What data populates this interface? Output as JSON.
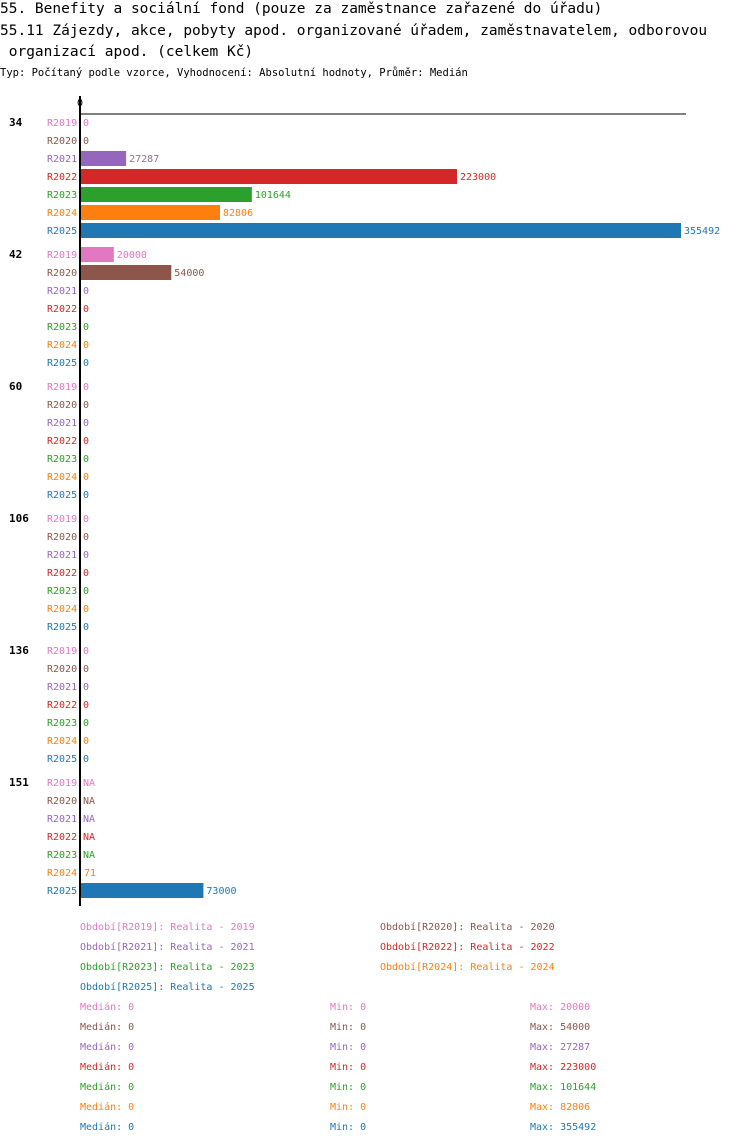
{
  "header": {
    "title_line1": "55. Benefity a sociální fond (pouze za zaměstnance zařazené do úřadu)",
    "title_line2": "55.11 Zájezdy, akce, pobyty apod. organizované úřadem, zaměstnavatelem, odborovou",
    "title_line3": " organizací apod. (celkem Kč)",
    "subtitle": "Typ: Počítaný podle vzorce, Vyhodnocení: Absolutní hodnoty, Průměr: Medián"
  },
  "chart_data": {
    "type": "bar",
    "orientation": "horizontal",
    "xmin": 0,
    "xmax": 355492,
    "axis_label_zero": "0",
    "groups": [
      "34",
      "42",
      "60",
      "106",
      "136",
      "151"
    ],
    "periods": [
      "R2019",
      "R2020",
      "R2021",
      "R2022",
      "R2023",
      "R2024",
      "R2025"
    ],
    "colors": {
      "R2019": "#e377c2",
      "R2020": "#8c564b",
      "R2021": "#9467bd",
      "R2022": "#d62728",
      "R2023": "#2ca02c",
      "R2024": "#ff7f0e",
      "R2025": "#1f77b4"
    },
    "values": [
      [
        0,
        0,
        27287,
        223000,
        101644,
        82806,
        355492
      ],
      [
        20000,
        54000,
        0,
        0,
        0,
        0,
        0
      ],
      [
        0,
        0,
        0,
        0,
        0,
        0,
        0
      ],
      [
        0,
        0,
        0,
        0,
        0,
        0,
        0
      ],
      [
        0,
        0,
        0,
        0,
        0,
        0,
        0
      ],
      [
        null,
        null,
        null,
        null,
        null,
        71,
        73000
      ]
    ],
    "labels": [
      [
        "0",
        "0",
        "27287",
        "223000",
        "101644",
        "82806",
        "355492"
      ],
      [
        "20000",
        "54000",
        "0",
        "0",
        "0",
        "0",
        "0"
      ],
      [
        "0",
        "0",
        "0",
        "0",
        "0",
        "0",
        "0"
      ],
      [
        "0",
        "0",
        "0",
        "0",
        "0",
        "0",
        "0"
      ],
      [
        "0",
        "0",
        "0",
        "0",
        "0",
        "0",
        "0"
      ],
      [
        "NA",
        "NA",
        "NA",
        "NA",
        "NA",
        "71",
        "73000"
      ]
    ]
  },
  "legend": [
    {
      "text": "Období[R2019]: Realita - 2019",
      "period": "R2019"
    },
    {
      "text": "Období[R2020]: Realita - 2020",
      "period": "R2020"
    },
    {
      "text": "Období[R2021]: Realita - 2021",
      "period": "R2021"
    },
    {
      "text": "Období[R2022]: Realita - 2022",
      "period": "R2022"
    },
    {
      "text": "Období[R2023]: Realita - 2023",
      "period": "R2023"
    },
    {
      "text": "Období[R2024]: Realita - 2024",
      "period": "R2024"
    },
    {
      "text": "Období[R2025]: Realita - 2025",
      "period": "R2025"
    }
  ],
  "stats": [
    {
      "period": "R2019",
      "median": "Medián: 0",
      "min": "Min: 0",
      "max": "Max: 20000"
    },
    {
      "period": "R2020",
      "median": "Medián: 0",
      "min": "Min: 0",
      "max": "Max: 54000"
    },
    {
      "period": "R2021",
      "median": "Medián: 0",
      "min": "Min: 0",
      "max": "Max: 27287"
    },
    {
      "period": "R2022",
      "median": "Medián: 0",
      "min": "Min: 0",
      "max": "Max: 223000"
    },
    {
      "period": "R2023",
      "median": "Medián: 0",
      "min": "Min: 0",
      "max": "Max: 101644"
    },
    {
      "period": "R2024",
      "median": "Medián: 0",
      "min": "Min: 0",
      "max": "Max: 82806"
    },
    {
      "period": "R2025",
      "median": "Medián: 0",
      "min": "Min: 0",
      "max": "Max: 355492"
    }
  ]
}
